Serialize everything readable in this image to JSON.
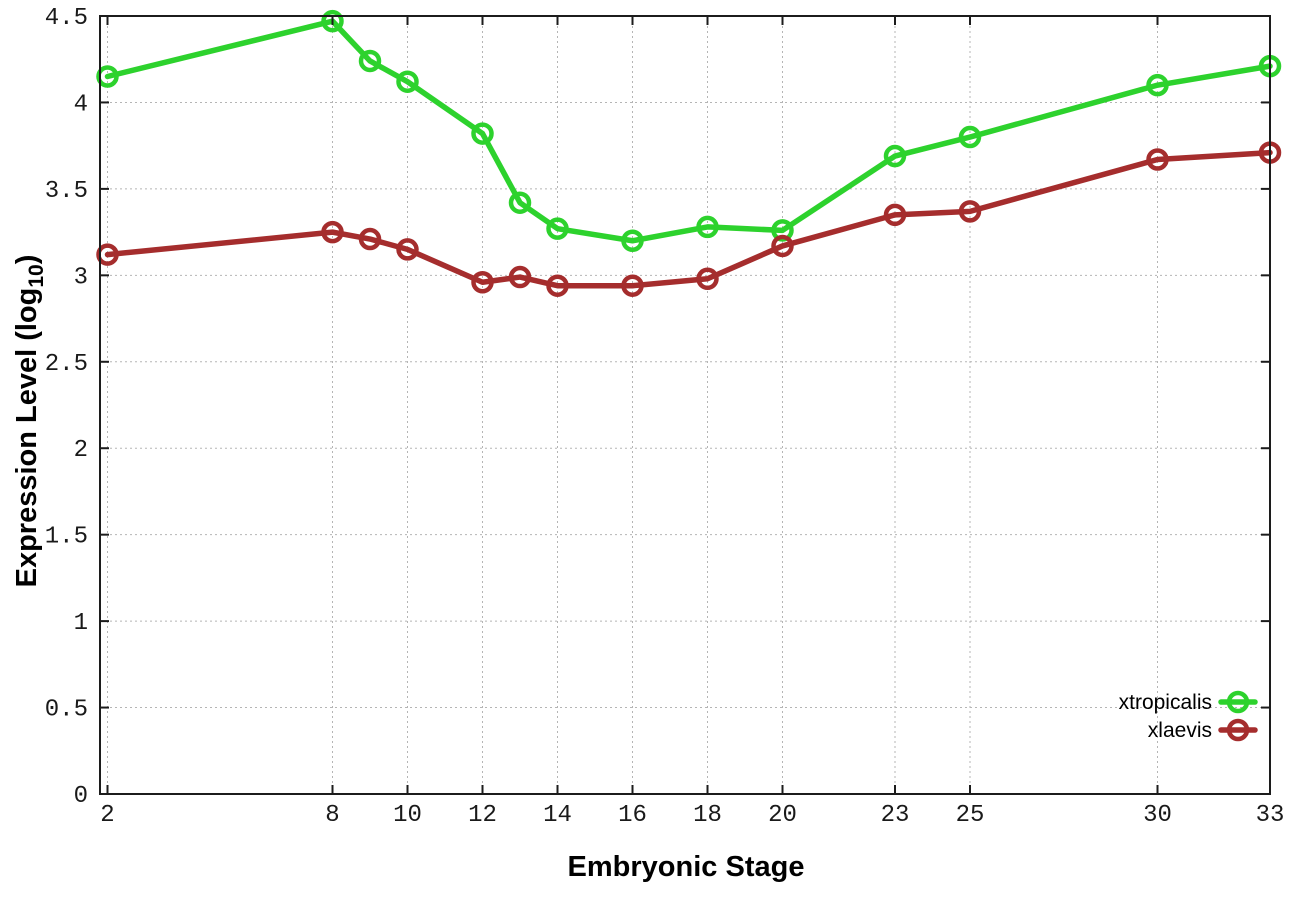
{
  "colors": {
    "background": "#ffffff",
    "axis": "#1c1c1c",
    "grid": "#b5b5b5",
    "text": "#000000",
    "xtropicalis_green": "#2dd22d",
    "xlaevis_red": "#a52d2d"
  },
  "chart_data": {
    "type": "line",
    "title": "",
    "xlabel": "Embryonic Stage",
    "ylabel": "Expression Level (log10)",
    "ylabel_prefix": "Expression Level (log",
    "ylabel_sub": "10",
    "ylabel_suffix": ")",
    "xlim": [
      1.8,
      33
    ],
    "ylim": [
      0,
      4.5
    ],
    "grid": true,
    "legend_position": "bottom-right-inside",
    "x_ticks": [
      2,
      8,
      10,
      12,
      14,
      16,
      18,
      20,
      23,
      25,
      30,
      33
    ],
    "x_tick_labels": [
      "2",
      "8",
      "10",
      "12",
      "14",
      "16",
      "18",
      "20",
      "23",
      "25",
      "30",
      "33"
    ],
    "y_ticks": [
      0,
      0.5,
      1,
      1.5,
      2,
      2.5,
      3,
      3.5,
      4,
      4.5
    ],
    "y_tick_labels": [
      "0",
      "0.5",
      "1",
      "1.5",
      "2",
      "2.5",
      "3",
      "3.5",
      "4",
      "4.5"
    ],
    "x": [
      2,
      8,
      9,
      10,
      12,
      13,
      14,
      16,
      18,
      20,
      23,
      25,
      30,
      33
    ],
    "series": [
      {
        "name": "xtropicalis",
        "color": "#2dd22d",
        "marker": "open-circle",
        "values": [
          4.15,
          4.47,
          4.24,
          4.12,
          3.82,
          3.42,
          3.27,
          3.2,
          3.28,
          3.26,
          3.69,
          3.8,
          4.1,
          4.21
        ]
      },
      {
        "name": "xlaevis",
        "color": "#a52d2d",
        "marker": "open-circle",
        "values": [
          3.12,
          3.25,
          3.21,
          3.15,
          2.96,
          2.99,
          2.94,
          2.94,
          2.98,
          3.17,
          3.35,
          3.37,
          3.67,
          3.71
        ]
      }
    ]
  }
}
